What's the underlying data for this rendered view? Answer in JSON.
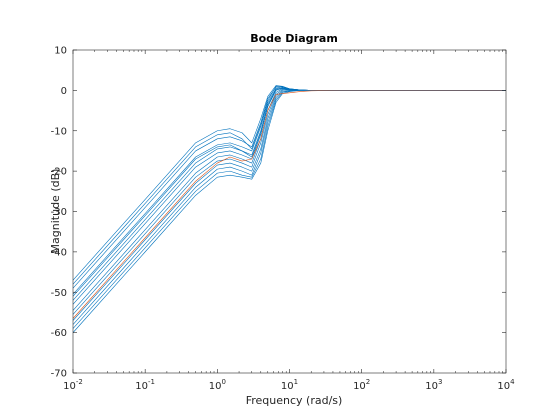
{
  "chart_data": {
    "type": "line",
    "title": "Bode Diagram",
    "xlabel": "Frequency  (rad/s)",
    "ylabel": "Magnitude (dB)",
    "xscale": "log",
    "xlim": [
      0.01,
      10000
    ],
    "ylim": [
      -70,
      10
    ],
    "x_ticks": [
      {
        "value": 0.01,
        "base": "10",
        "exp": "-2"
      },
      {
        "value": 0.1,
        "base": "10",
        "exp": "-1"
      },
      {
        "value": 1,
        "base": "10",
        "exp": "0"
      },
      {
        "value": 10,
        "base": "10",
        "exp": "1"
      },
      {
        "value": 100,
        "base": "10",
        "exp": "2"
      },
      {
        "value": 1000,
        "base": "10",
        "exp": "3"
      },
      {
        "value": 10000,
        "base": "10",
        "exp": "4"
      }
    ],
    "y_ticks": [
      10,
      0,
      -10,
      -20,
      -30,
      -40,
      -50,
      -60,
      -70
    ],
    "grid": false,
    "box": true,
    "colors": {
      "samples": "#0072bd",
      "nominal": "#d95319"
    },
    "series_note_visible": false,
    "series": [
      {
        "role": "nominal",
        "color": "#d95319",
        "x": [
          0.01,
          0.1,
          0.5,
          1,
          1.5,
          2.2,
          3,
          4,
          5,
          6.5,
          8,
          10,
          14,
          20,
          50,
          100,
          10000
        ],
        "y": [
          -56.5,
          -36.5,
          -22.5,
          -18,
          -16.5,
          -17.5,
          -17,
          -12,
          -5,
          -1,
          -0.8,
          -0.6,
          -0.3,
          -0.1,
          0,
          0,
          0
        ]
      },
      {
        "role": "sample",
        "color": "#0072bd",
        "x": [
          0.01,
          0.1,
          0.5,
          1,
          1.5,
          2.2,
          3,
          4,
          5,
          6.5,
          8,
          10,
          14,
          20,
          50,
          100,
          10000
        ],
        "y": [
          -47,
          -27,
          -13,
          -10,
          -9.5,
          -10.5,
          -13,
          -7,
          -1.5,
          1.2,
          1,
          0.4,
          0.1,
          0,
          0,
          0,
          0
        ]
      },
      {
        "role": "sample",
        "color": "#0072bd",
        "x": [
          0.01,
          0.1,
          0.5,
          1,
          1.5,
          2.2,
          3,
          4,
          5,
          6.5,
          8,
          10,
          14,
          20,
          50,
          100,
          10000
        ],
        "y": [
          -49,
          -29,
          -15,
          -12,
          -11.5,
          -12.5,
          -14,
          -8,
          -2,
          0.8,
          0.9,
          0.4,
          0.1,
          0,
          0,
          0,
          0
        ]
      },
      {
        "role": "sample",
        "color": "#0072bd",
        "x": [
          0.01,
          0.1,
          0.5,
          1,
          1.5,
          2.2,
          3,
          4,
          5,
          6.5,
          8,
          10,
          14,
          20,
          50,
          100,
          10000
        ],
        "y": [
          -50.5,
          -30.5,
          -16.5,
          -13.5,
          -13,
          -14,
          -15,
          -9,
          -3,
          0.5,
          0.8,
          0.3,
          0.1,
          0,
          0,
          0,
          0
        ]
      },
      {
        "role": "sample",
        "color": "#0072bd",
        "x": [
          0.01,
          0.1,
          0.5,
          1,
          1.5,
          2.2,
          3,
          4,
          5,
          6.5,
          8,
          10,
          14,
          20,
          50,
          100,
          10000
        ],
        "y": [
          -52,
          -32,
          -18,
          -14.5,
          -14,
          -15,
          -16,
          -10,
          -3.5,
          0.2,
          0.6,
          0.3,
          0.1,
          0,
          0,
          0,
          0
        ]
      },
      {
        "role": "sample",
        "color": "#0072bd",
        "x": [
          0.01,
          0.1,
          0.5,
          1,
          1.5,
          2.2,
          3,
          4,
          5,
          6.5,
          8,
          10,
          14,
          20,
          50,
          100,
          10000
        ],
        "y": [
          -53,
          -33,
          -19,
          -15.5,
          -15,
          -16,
          -17,
          -11,
          -4,
          0,
          0.5,
          0.2,
          0,
          0,
          0,
          0,
          0
        ]
      },
      {
        "role": "sample",
        "color": "#0072bd",
        "x": [
          0.01,
          0.1,
          0.5,
          1,
          1.5,
          2.2,
          3,
          4,
          5,
          6.5,
          8,
          10,
          14,
          20,
          50,
          100,
          10000
        ],
        "y": [
          -54.5,
          -34.5,
          -20.5,
          -16.5,
          -16,
          -17,
          -18,
          -12,
          -5,
          -0.5,
          0.4,
          0.2,
          0,
          0,
          0,
          0,
          0
        ]
      },
      {
        "role": "sample",
        "color": "#0072bd",
        "x": [
          0.01,
          0.1,
          0.5,
          1,
          1.5,
          2.2,
          3,
          4,
          5,
          6.5,
          8,
          10,
          14,
          20,
          50,
          100,
          10000
        ],
        "y": [
          -55.5,
          -35.5,
          -21.5,
          -17.5,
          -17,
          -18,
          -19,
          -13,
          -6,
          -1,
          0.2,
          0.1,
          0,
          0,
          0,
          0,
          0
        ]
      },
      {
        "role": "sample",
        "color": "#0072bd",
        "x": [
          0.01,
          0.1,
          0.5,
          1,
          1.5,
          2.2,
          3,
          4,
          5,
          6.5,
          8,
          10,
          14,
          20,
          50,
          100,
          10000
        ],
        "y": [
          -57,
          -37,
          -23,
          -18.5,
          -18,
          -19,
          -20,
          -14.5,
          -7,
          -1.5,
          0,
          0,
          0,
          0,
          0,
          0,
          0
        ]
      },
      {
        "role": "sample",
        "color": "#0072bd",
        "x": [
          0.01,
          0.1,
          0.5,
          1,
          1.5,
          2.2,
          3,
          4,
          5,
          6.5,
          8,
          10,
          14,
          20,
          50,
          100,
          10000
        ],
        "y": [
          -58,
          -38,
          -24,
          -19.5,
          -19,
          -20,
          -21,
          -15.5,
          -8,
          -2,
          -0.3,
          -0.1,
          0,
          0,
          0,
          0,
          0
        ]
      },
      {
        "role": "sample",
        "color": "#0072bd",
        "x": [
          0.01,
          0.1,
          0.5,
          1,
          1.5,
          2.2,
          3,
          4,
          5,
          6.5,
          8,
          10,
          14,
          20,
          50,
          100,
          10000
        ],
        "y": [
          -59,
          -39,
          -25,
          -20.5,
          -20,
          -21,
          -21.5,
          -17,
          -9,
          -2.5,
          -0.5,
          -0.2,
          0,
          0,
          0,
          0,
          0
        ]
      },
      {
        "role": "sample",
        "color": "#0072bd",
        "x": [
          0.01,
          0.1,
          0.5,
          1,
          1.5,
          2.2,
          3,
          4,
          5,
          6.5,
          8,
          10,
          14,
          20,
          50,
          100,
          10000
        ],
        "y": [
          -60,
          -40,
          -26,
          -21.5,
          -21,
          -21.5,
          -22,
          -18,
          -10,
          -3,
          -0.8,
          -0.3,
          0,
          0,
          0,
          0,
          0
        ]
      },
      {
        "role": "sample",
        "color": "#0072bd",
        "x": [
          0.01,
          0.1,
          0.5,
          1,
          1.5,
          2.2,
          3,
          4,
          5,
          6.5,
          8,
          10,
          14,
          20,
          50,
          100,
          10000
        ],
        "y": [
          -48,
          -28,
          -14,
          -11,
          -10.5,
          -12,
          -14.5,
          -8.5,
          -2.5,
          1,
          0.9,
          0.4,
          0.1,
          0,
          0,
          0,
          0
        ]
      },
      {
        "role": "sample",
        "color": "#0072bd",
        "x": [
          0.01,
          0.1,
          0.5,
          1,
          1.5,
          2.2,
          3,
          4,
          5,
          6.5,
          8,
          10,
          14,
          20,
          50,
          100,
          10000
        ],
        "y": [
          -51,
          -31,
          -17,
          -14,
          -13.5,
          -15,
          -16.5,
          -10.5,
          -4,
          0.3,
          0.6,
          0.3,
          0.1,
          0,
          0,
          0,
          0
        ]
      }
    ]
  }
}
